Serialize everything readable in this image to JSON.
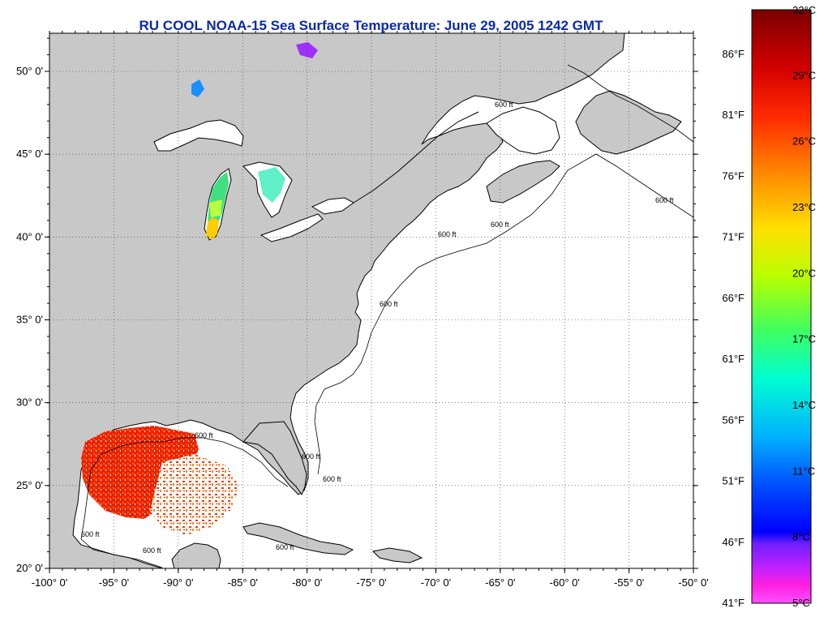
{
  "title": "RU COOL  NOAA-15  Sea Surface Temperature:  June 29, 2005 1242 GMT",
  "map": {
    "lon_range": [
      -100,
      -50
    ],
    "lat_range": [
      20,
      52.3
    ],
    "lon_ticks": [
      {
        "value": -100,
        "label": "-100° 0'"
      },
      {
        "value": -95,
        "label": "-95° 0'"
      },
      {
        "value": -90,
        "label": "-90° 0'"
      },
      {
        "value": -85,
        "label": "-85° 0'"
      },
      {
        "value": -80,
        "label": "-80° 0'"
      },
      {
        "value": -75,
        "label": "-75° 0'"
      },
      {
        "value": -70,
        "label": "-70° 0'"
      },
      {
        "value": -65,
        "label": "-65° 0'"
      },
      {
        "value": -60,
        "label": "-60° 0'"
      },
      {
        "value": -55,
        "label": "-55° 0'"
      },
      {
        "value": -50,
        "label": "-50° 0'"
      }
    ],
    "lat_ticks": [
      {
        "value": 20,
        "label": "20° 0'"
      },
      {
        "value": 25,
        "label": "25° 0'"
      },
      {
        "value": 30,
        "label": "30° 0'"
      },
      {
        "value": 35,
        "label": "35° 0'"
      },
      {
        "value": 40,
        "label": "40° 0'"
      },
      {
        "value": 45,
        "label": "45° 0'"
      },
      {
        "value": 50,
        "label": "50° 0'"
      }
    ],
    "contour_label": "600 ft",
    "land_color": "#c8c8c8",
    "ocean_color": "#ffffff"
  },
  "colorbar": {
    "celsius_labels": [
      "32°C",
      "29°C",
      "26°C",
      "23°C",
      "20°C",
      "17°C",
      "14°C",
      "11°C",
      "8°C",
      "5°C"
    ],
    "fahrenheit_labels": [
      "86°F",
      "81°F",
      "76°F",
      "71°F",
      "66°F",
      "61°F",
      "56°F",
      "51°F",
      "46°F",
      "41°F"
    ],
    "colors_top_to_bottom": [
      "#7a0000",
      "#d40000",
      "#ff2a00",
      "#ff8c00",
      "#ffe000",
      "#b8ff00",
      "#40ff60",
      "#00ffd0",
      "#00b0ff",
      "#0050ff",
      "#0000ff",
      "#7020ff",
      "#c020ff",
      "#ff20e0",
      "#ff50ff"
    ]
  }
}
